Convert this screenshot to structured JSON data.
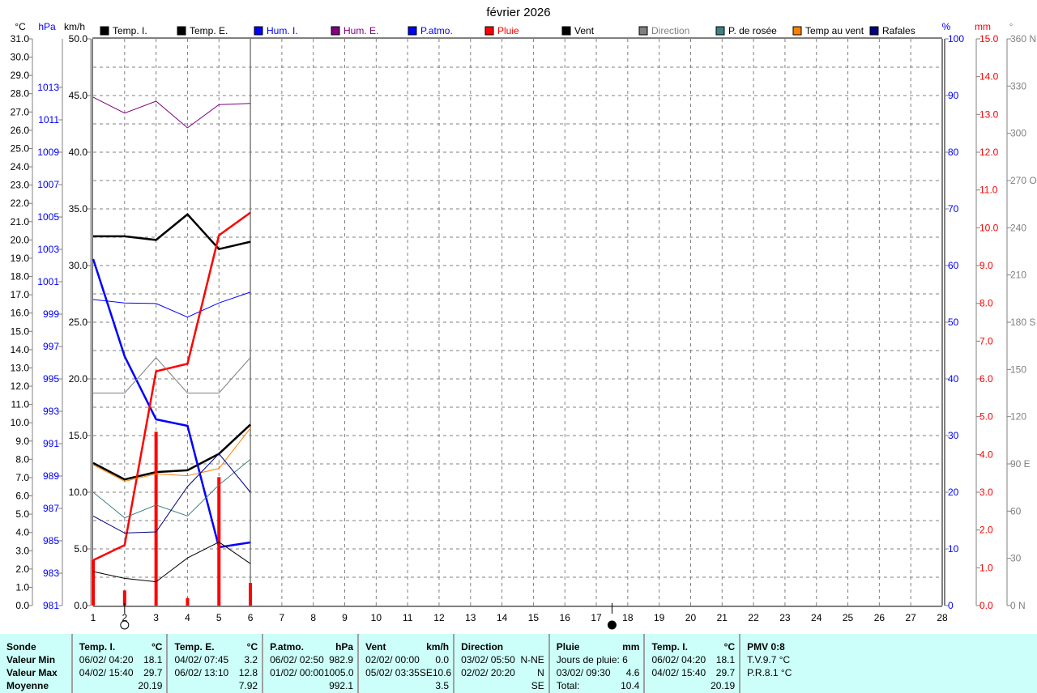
{
  "chart_data": {
    "type": "line",
    "title": "février 2026",
    "x": [
      1,
      2,
      3,
      4,
      5,
      6
    ],
    "xlim": [
      1,
      28
    ],
    "x_ticks": [
      1,
      2,
      3,
      4,
      5,
      6,
      7,
      8,
      9,
      10,
      11,
      12,
      13,
      14,
      15,
      16,
      17,
      18,
      19,
      20,
      21,
      22,
      23,
      24,
      25,
      26,
      27,
      28
    ],
    "grid": true,
    "legend_placement": "top",
    "axes": {
      "temp": {
        "unit": "°C",
        "min": 0,
        "max": 31,
        "step": 1,
        "color": "#000000"
      },
      "hpa": {
        "unit": "hPa",
        "min": 981,
        "max": 1016,
        "step": 2,
        "color": "#0000ff"
      },
      "kmh": {
        "unit": "km/h",
        "min": 0,
        "max": 50,
        "step": 5,
        "color": "#000000"
      },
      "pct": {
        "unit": "%",
        "min": 0,
        "max": 100,
        "step": 10,
        "color": "#0000ff"
      },
      "mm": {
        "unit": "mm",
        "min": 0,
        "max": 15,
        "step": 1,
        "color": "#ff0000"
      },
      "deg": {
        "unit": "°",
        "min": 0,
        "max": 360,
        "step": 30,
        "color": "#808080",
        "labels": {
          "0": "0 N",
          "90": "90 E",
          "180": "180 S",
          "270": "270 O",
          "360": "360 N"
        }
      }
    },
    "series": [
      {
        "name": "Temp. I.",
        "color": "#000000",
        "axis": "temp",
        "width": 2.5,
        "values": [
          20.2,
          20.2,
          20.0,
          21.4,
          19.5,
          19.9
        ]
      },
      {
        "name": "Temp. E.",
        "color": "#000000",
        "axis": "temp",
        "width": 2.5,
        "values": [
          7.8,
          6.9,
          7.3,
          7.4,
          8.3,
          9.9
        ]
      },
      {
        "name": "Hum. I.",
        "color": "#0000ff",
        "axis": "pct",
        "width": 1,
        "values": [
          54.0,
          53.4,
          53.3,
          50.9,
          53.4,
          55.3
        ]
      },
      {
        "name": "Hum. E.",
        "color": "#800080",
        "axis": "pct",
        "width": 1,
        "values": [
          89.7,
          86.9,
          89.0,
          84.3,
          88.4,
          88.6
        ]
      },
      {
        "name": "P.atmo.",
        "color": "#0000ff",
        "axis": "hpa",
        "width": 2.5,
        "values": [
          1002.4,
          996.4,
          992.5,
          992.1,
          984.6,
          984.9
        ]
      },
      {
        "name": "Pluie",
        "color": "#ff0000",
        "axis": "mm",
        "width": 2.5,
        "values": [
          1.2,
          1.6,
          6.2,
          6.4,
          9.8,
          10.4
        ],
        "bars": [
          1.2,
          0.4,
          4.6,
          0.2,
          3.4,
          0.6
        ]
      },
      {
        "name": "Vent",
        "color": "#000000",
        "axis": "kmh",
        "width": 1,
        "values": [
          3.0,
          2.4,
          2.1,
          4.2,
          5.6,
          3.7
        ]
      },
      {
        "name": "Direction",
        "color": "#808080",
        "axis": "deg",
        "width": 1,
        "values": [
          135,
          135,
          157.5,
          135,
          135,
          157.5
        ]
      },
      {
        "name": "P. de rosée",
        "color": "#408080",
        "axis": "temp",
        "width": 1,
        "values": [
          6.2,
          4.8,
          5.5,
          4.9,
          6.6,
          8.0
        ]
      },
      {
        "name": "Temp au vent",
        "color": "#ff8000",
        "axis": "temp",
        "width": 1,
        "values": [
          7.7,
          6.8,
          7.2,
          7.1,
          7.5,
          9.7
        ]
      },
      {
        "name": "Rafales",
        "color": "#000080",
        "axis": "kmh",
        "width": 1,
        "values": [
          7.9,
          6.4,
          6.5,
          10.5,
          13.4,
          10.0
        ]
      }
    ],
    "current_day": 6,
    "moon_phases": [
      {
        "day": 2,
        "phase": "full-moon-icon"
      },
      {
        "day": 17.5,
        "phase": "new-moon-icon"
      }
    ]
  },
  "table": [
    {
      "head": [
        "Sonde",
        ""
      ],
      "rows": [
        [
          "Valeur Min",
          ""
        ],
        [
          "Valeur Max",
          ""
        ],
        [
          "Moyenne",
          ""
        ]
      ],
      "bold": true
    },
    {
      "head": [
        "Temp. I.",
        "°C"
      ],
      "rows": [
        [
          "06/02/  04:20",
          "18.1"
        ],
        [
          "04/02/  15:40",
          "29.7"
        ],
        [
          "",
          "20.19"
        ]
      ]
    },
    {
      "head": [
        "Temp. E.",
        "°C"
      ],
      "rows": [
        [
          "04/02/  07:45",
          "3.2"
        ],
        [
          "06/02/  13:10",
          "12.8"
        ],
        [
          "",
          "7.92"
        ]
      ]
    },
    {
      "head": [
        "P.atmo.",
        "hPa"
      ],
      "rows": [
        [
          "06/02/  02:50",
          "982.9"
        ],
        [
          "01/02/  00:00",
          "1005.0"
        ],
        [
          "",
          "992.1"
        ]
      ]
    },
    {
      "head": [
        "Vent",
        "km/h"
      ],
      "rows": [
        [
          "02/02/  00:00",
          "0.0"
        ],
        [
          "05/02/  03:35SE",
          "10.6"
        ],
        [
          "",
          "3.5"
        ]
      ]
    },
    {
      "head": [
        "Direction",
        ""
      ],
      "rows": [
        [
          "03/02/  05:50",
          "N-NE"
        ],
        [
          "02/02/  20:20",
          "N"
        ],
        [
          "",
          "SE"
        ]
      ]
    },
    {
      "head": [
        "Pluie",
        "mm"
      ],
      "rows": [
        [
          "Jours de pluie: 6",
          ""
        ],
        [
          "03/02/  09:30",
          "4.6"
        ],
        [
          "Total:",
          "10.4"
        ]
      ]
    },
    {
      "head": [
        "Temp. I.",
        "°C"
      ],
      "rows": [
        [
          "06/02/  04:20",
          "18.1"
        ],
        [
          "04/02/  15:40",
          "29.7"
        ],
        [
          "",
          "20.19"
        ]
      ]
    },
    {
      "head": [
        "PMV 0:8",
        ""
      ],
      "rows": [
        [
          "T.V.9.7 °C",
          ""
        ],
        [
          "P.R.8.1 °C",
          ""
        ],
        [
          "",
          ""
        ]
      ]
    }
  ]
}
